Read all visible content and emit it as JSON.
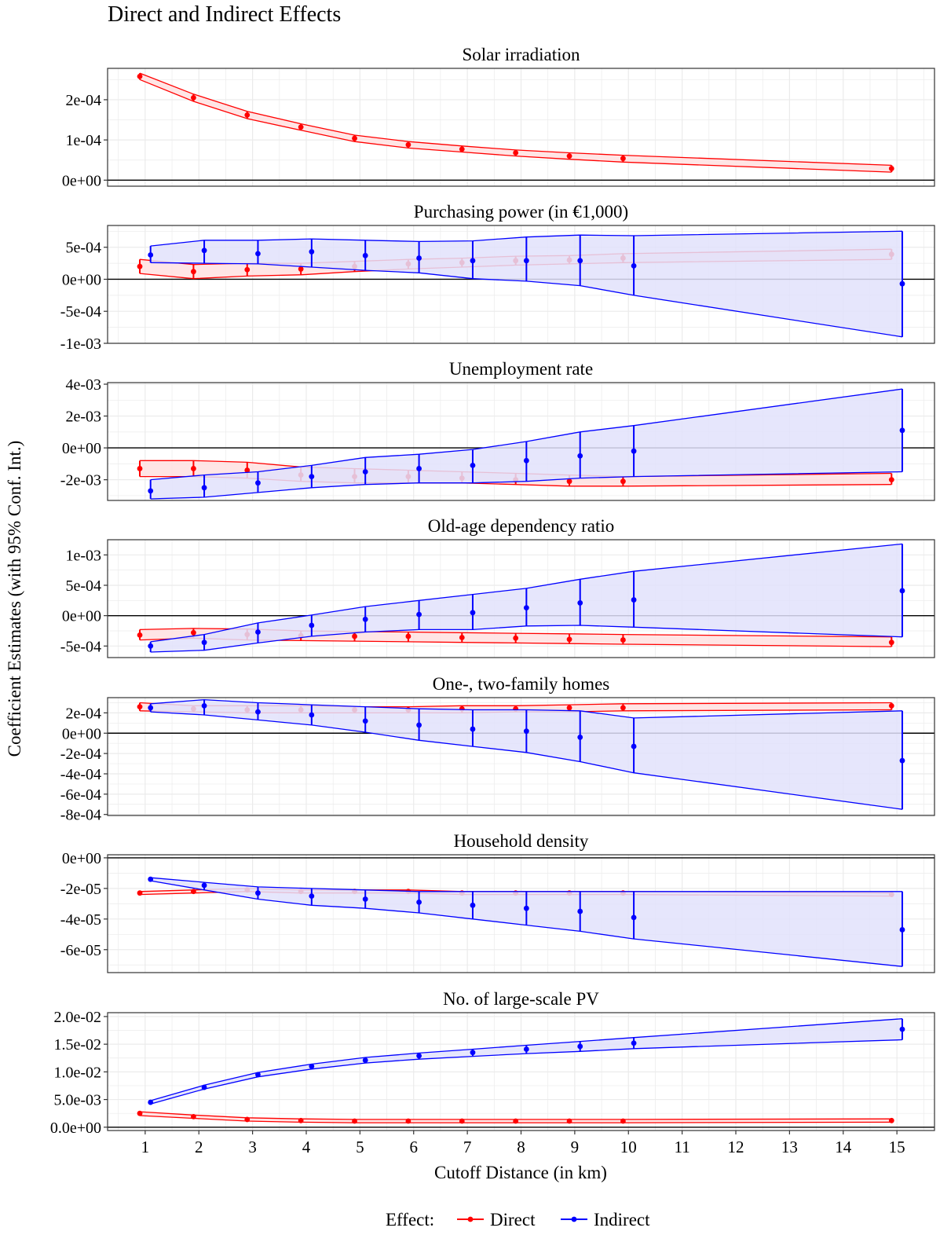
{
  "title": "Direct and Indirect Effects",
  "ylabel": "Coefficient Estimates (with 95% Conf. Int.)",
  "xlabel": "Cutoff Distance (in km)",
  "legend_title": "Effect:",
  "x_ticks": [
    "1",
    "2",
    "3",
    "4",
    "5",
    "6",
    "7",
    "8",
    "9",
    "10",
    "11",
    "12",
    "13",
    "14",
    "15"
  ],
  "colors": {
    "direct": "#ff0000",
    "indirect": "#0000ff",
    "direct_fill": "#ffe0e0",
    "indirect_fill": "#e2e2fc",
    "grid": "#ebebeb",
    "zero_line": "#000000"
  },
  "chart_data": {
    "type": "line",
    "x": [
      1,
      2,
      3,
      4,
      5,
      6,
      7,
      8,
      9,
      10,
      15
    ],
    "xlim": [
      0.3,
      15.7
    ],
    "legend": {
      "position": "bottom",
      "entries": [
        "Direct",
        "Indirect"
      ]
    },
    "grid": true,
    "panels": [
      {
        "title": "Solar irradiation",
        "ylim": [
          -1.5e-05,
          0.000278
        ],
        "yticks": [
          0,
          0.0001,
          0.0002
        ],
        "yticklabels": [
          "0e+00",
          "1e-04",
          "2e-04"
        ],
        "series": [
          {
            "name": "Direct",
            "estimate": [
              0.000258,
              0.000205,
              0.000162,
              0.000132,
              0.000104,
              8.8e-05,
              7.7e-05,
              6.8e-05,
              6e-05,
              5.4e-05,
              2.9e-05
            ],
            "lower": [
              0.00025,
              0.000196,
              0.000153,
              0.000124,
              9.6e-05,
              8e-05,
              7e-05,
              6e-05,
              5.2e-05,
              4.5e-05,
              2e-05
            ],
            "upper": [
              0.000266,
              0.000214,
              0.000171,
              0.00014,
              0.000112,
              9.6e-05,
              8.5e-05,
              7.5e-05,
              6.8e-05,
              6.2e-05,
              3.7e-05
            ]
          }
        ]
      },
      {
        "title": "Purchasing power (in €1,000)",
        "ylim": [
          -0.001,
          0.00084
        ],
        "yticks": [
          -0.001,
          -0.0005,
          0,
          0.0005
        ],
        "yticklabels": [
          "-1e-03",
          "-5e-04",
          "0e+00",
          "5e-04"
        ],
        "series": [
          {
            "name": "Direct",
            "estimate": [
              0.0002,
              0.00012,
              0.00015,
              0.00016,
              0.0002,
              0.00024,
              0.00026,
              0.00029,
              0.0003,
              0.00033,
              0.00039
            ],
            "lower": [
              9e-05,
              1e-05,
              5e-05,
              7e-05,
              0.00012,
              0.00016,
              0.00019,
              0.00022,
              0.00024,
              0.00026,
              0.00031
            ],
            "upper": [
              0.00031,
              0.00023,
              0.00025,
              0.00025,
              0.00028,
              0.00031,
              0.00033,
              0.00036,
              0.00037,
              0.0004,
              0.00047
            ]
          },
          {
            "name": "Indirect",
            "estimate": [
              0.00038,
              0.00045,
              0.0004,
              0.00043,
              0.00037,
              0.00033,
              0.00029,
              0.00029,
              0.00029,
              0.00021,
              -7e-05
            ],
            "lower": [
              0.00026,
              0.00025,
              0.00024,
              0.00019,
              0.00014,
              0.0001,
              1e-05,
              -3e-05,
              -0.0001,
              -0.00025,
              -0.0009
            ],
            "upper": [
              0.00052,
              0.00061,
              0.00061,
              0.00063,
              0.00061,
              0.00059,
              0.0006,
              0.00066,
              0.00069,
              0.00068,
              0.00075
            ]
          }
        ]
      },
      {
        "title": "Unemployment rate",
        "ylim": [
          -0.0033,
          0.0041
        ],
        "yticks": [
          -0.002,
          0,
          0.002,
          0.004
        ],
        "yticklabels": [
          "-2e-03",
          "0e+00",
          "2e-03",
          "4e-03"
        ],
        "series": [
          {
            "name": "Direct",
            "estimate": [
              -0.0013,
              -0.0013,
              -0.0014,
              -0.0017,
              -0.0018,
              -0.0018,
              -0.0019,
              -0.002,
              -0.0021,
              -0.0021,
              -0.002
            ],
            "lower": [
              -0.0018,
              -0.0018,
              -0.0019,
              -0.0021,
              -0.0022,
              -0.0022,
              -0.0022,
              -0.0023,
              -0.0024,
              -0.0024,
              -0.0023
            ],
            "upper": [
              -0.0008,
              -0.0008,
              -0.0009,
              -0.0012,
              -0.0013,
              -0.0014,
              -0.0015,
              -0.0016,
              -0.0017,
              -0.0018,
              -0.0016
            ]
          },
          {
            "name": "Indirect",
            "estimate": [
              -0.0027,
              -0.0025,
              -0.0022,
              -0.0018,
              -0.0015,
              -0.0013,
              -0.0011,
              -0.0008,
              -0.0005,
              -0.0002,
              0.0011
            ],
            "lower": [
              -0.0032,
              -0.0031,
              -0.0028,
              -0.0025,
              -0.0023,
              -0.0022,
              -0.0022,
              -0.0021,
              -0.0019,
              -0.0018,
              -0.0015
            ],
            "upper": [
              -0.002,
              -0.0017,
              -0.0015,
              -0.0011,
              -0.0006,
              -0.0004,
              -0.0001,
              0.0004,
              0.001,
              0.0014,
              0.0037
            ]
          }
        ]
      },
      {
        "title": "Old-age dependency ratio",
        "ylim": [
          -0.00069,
          0.00125
        ],
        "yticks": [
          -0.0005,
          0,
          0.0005,
          0.001
        ],
        "yticklabels": [
          "-5e-04",
          "0e+00",
          "5e-04",
          "1e-03"
        ],
        "series": [
          {
            "name": "Direct",
            "estimate": [
              -0.00032,
              -0.00028,
              -0.00031,
              -0.00033,
              -0.00034,
              -0.00034,
              -0.00036,
              -0.00037,
              -0.00039,
              -0.0004,
              -0.00044
            ],
            "lower": [
              -0.0004,
              -0.00037,
              -0.0004,
              -0.00041,
              -0.00042,
              -0.00043,
              -0.00044,
              -0.00045,
              -0.00046,
              -0.00047,
              -0.00051
            ],
            "upper": [
              -0.00023,
              -0.00021,
              -0.00022,
              -0.00025,
              -0.00026,
              -0.00027,
              -0.00028,
              -0.00029,
              -0.0003,
              -0.00031,
              -0.00035
            ]
          },
          {
            "name": "Indirect",
            "estimate": [
              -0.0005,
              -0.00044,
              -0.00027,
              -0.00016,
              -6e-05,
              2e-05,
              5e-05,
              0.00013,
              0.00021,
              0.00026,
              0.00041
            ],
            "lower": [
              -0.0006,
              -0.00057,
              -0.00045,
              -0.00034,
              -0.00027,
              -0.00023,
              -0.00023,
              -0.00017,
              -0.00016,
              -0.00019,
              -0.00035
            ],
            "upper": [
              -0.00043,
              -0.00031,
              -0.00012,
              1e-05,
              0.00015,
              0.00025,
              0.00035,
              0.00045,
              0.0006,
              0.00073,
              0.00118
            ]
          }
        ]
      },
      {
        "title": "One-, two-family homes",
        "ylim": [
          -0.00081,
          0.00035
        ],
        "yticks": [
          -0.0008,
          -0.0006,
          -0.0004,
          -0.0002,
          0,
          0.0002
        ],
        "yticklabels": [
          "-8e-04",
          "-6e-04",
          "-4e-04",
          "-2e-04",
          "0e+00",
          "2e-04"
        ],
        "series": [
          {
            "name": "Direct",
            "estimate": [
              0.00026,
              0.00024,
              0.00023,
              0.00023,
              0.00023,
              0.00023,
              0.00024,
              0.00024,
              0.00025,
              0.00025,
              0.00027
            ],
            "lower": [
              0.00022,
              0.00021,
              0.0002,
              0.0002,
              0.0002,
              0.0002,
              0.0002,
              0.00021,
              0.00021,
              0.00022,
              0.00023
            ],
            "upper": [
              0.0003,
              0.00027,
              0.00027,
              0.00027,
              0.00026,
              0.00026,
              0.00027,
              0.00027,
              0.00028,
              0.00029,
              0.0003
            ]
          },
          {
            "name": "Indirect",
            "estimate": [
              0.00025,
              0.00027,
              0.00021,
              0.00018,
              0.00012,
              8e-05,
              4e-05,
              2e-05,
              -4e-05,
              -0.00013,
              -0.00027
            ],
            "lower": [
              0.00021,
              0.00018,
              0.00013,
              8e-05,
              1e-05,
              -7e-05,
              -0.00013,
              -0.00019,
              -0.00028,
              -0.00039,
              -0.00075
            ],
            "upper": [
              0.00029,
              0.00033,
              0.0003,
              0.00028,
              0.00026,
              0.00024,
              0.00023,
              0.00023,
              0.00022,
              0.00015,
              0.00022
            ]
          }
        ]
      },
      {
        "title": "Household density",
        "ylim": [
          -7.5e-05,
          2e-06
        ],
        "yticks": [
          -6e-05,
          -4e-05,
          -2e-05,
          0
        ],
        "yticklabels": [
          "-6e-05",
          "-4e-05",
          "-2e-05",
          "0e+00"
        ],
        "series": [
          {
            "name": "Direct",
            "estimate": [
              -2.3e-05,
              -2.2e-05,
              -2.1e-05,
              -2.2e-05,
              -2.2e-05,
              -2.2e-05,
              -2.3e-05,
              -2.3e-05,
              -2.3e-05,
              -2.3e-05,
              -2.4e-05
            ],
            "lower": [
              -2.4e-05,
              -2.3e-05,
              -2.2e-05,
              -2.3e-05,
              -2.3e-05,
              -2.3e-05,
              -2.4e-05,
              -2.4e-05,
              -2.4e-05,
              -2.4e-05,
              -2.5e-05
            ],
            "upper": [
              -2.2e-05,
              -2.1e-05,
              -2e-05,
              -2.1e-05,
              -2.1e-05,
              -2.1e-05,
              -2.2e-05,
              -2.2e-05,
              -2.2e-05,
              -2.2e-05,
              -2.3e-05
            ]
          },
          {
            "name": "Indirect",
            "estimate": [
              -1.4e-05,
              -1.8e-05,
              -2.3e-05,
              -2.5e-05,
              -2.7e-05,
              -2.9e-05,
              -3.1e-05,
              -3.3e-05,
              -3.5e-05,
              -3.9e-05,
              -4.7e-05
            ],
            "lower": [
              -1.5e-05,
              -2.1e-05,
              -2.7e-05,
              -3.1e-05,
              -3.3e-05,
              -3.6e-05,
              -4e-05,
              -4.4e-05,
              -4.8e-05,
              -5.3e-05,
              -7.1e-05
            ],
            "upper": [
              -1.3e-05,
              -1.6e-05,
              -1.9e-05,
              -2e-05,
              -2.1e-05,
              -2.2e-05,
              -2.2e-05,
              -2.2e-05,
              -2.2e-05,
              -2.2e-05,
              -2.2e-05
            ]
          }
        ]
      },
      {
        "title": "No. of large-scale PV",
        "ylim": [
          -0.0006,
          0.0207
        ],
        "yticks": [
          0,
          0.005,
          0.01,
          0.015,
          0.02
        ],
        "yticklabels": [
          "0.0e+00",
          "5.0e-03",
          "1.0e-02",
          "1.5e-02",
          "2.0e-02"
        ],
        "series": [
          {
            "name": "Direct",
            "estimate": [
              0.0025,
              0.0019,
              0.0014,
              0.0012,
              0.0011,
              0.0011,
              0.0011,
              0.0011,
              0.0011,
              0.0011,
              0.0012
            ],
            "lower": [
              0.0021,
              0.0016,
              0.0011,
              0.0009,
              0.0008,
              0.0008,
              0.0008,
              0.0008,
              0.0008,
              0.0008,
              0.0009
            ],
            "upper": [
              0.0028,
              0.0022,
              0.0017,
              0.0015,
              0.0014,
              0.0014,
              0.0014,
              0.0014,
              0.0014,
              0.0014,
              0.0015
            ]
          },
          {
            "name": "Indirect",
            "estimate": [
              0.0045,
              0.0072,
              0.0095,
              0.011,
              0.0121,
              0.0129,
              0.0135,
              0.0141,
              0.0146,
              0.0152,
              0.0177
            ],
            "lower": [
              0.0042,
              0.0069,
              0.0091,
              0.0105,
              0.0116,
              0.0123,
              0.0128,
              0.0133,
              0.0137,
              0.0142,
              0.0158
            ],
            "upper": [
              0.0048,
              0.0076,
              0.0099,
              0.0114,
              0.0126,
              0.0134,
              0.0141,
              0.0148,
              0.0155,
              0.0162,
              0.0196
            ]
          }
        ]
      }
    ]
  }
}
